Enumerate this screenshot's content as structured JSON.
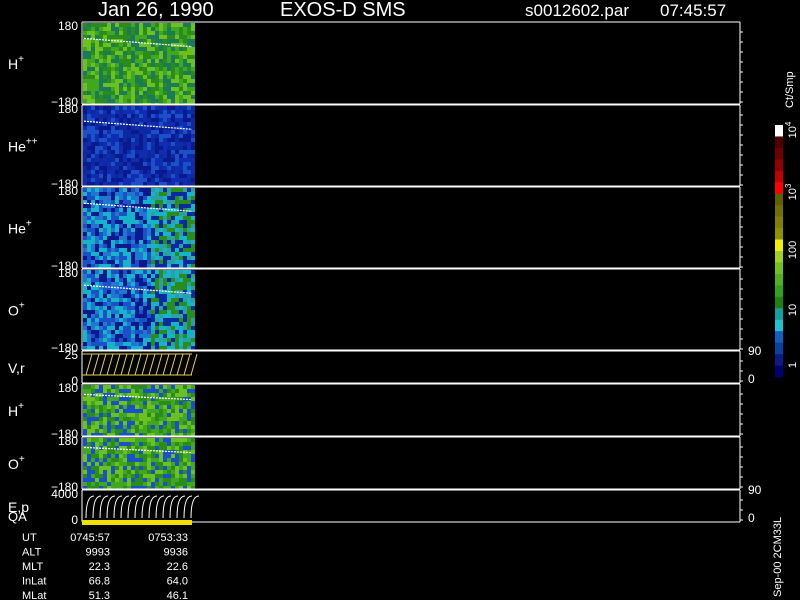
{
  "header": {
    "date": "Jan 26, 1990",
    "instrument": "EXOS-D SMS",
    "file": "s0012602.par",
    "time": "07:45:57"
  },
  "panels": [
    {
      "label": "H",
      "sup": "+",
      "top": "180",
      "bottom": "−180"
    },
    {
      "label": "He",
      "sup": "++",
      "top": "180",
      "bottom": "−180"
    },
    {
      "label": "He",
      "sup": "+",
      "top": "180",
      "bottom": "−180"
    },
    {
      "label": "O",
      "sup": "+",
      "top": "180",
      "bottom": "−180"
    },
    {
      "label": "V,r",
      "sup": "",
      "top": "25",
      "bottom": "0",
      "right_top": "90",
      "right_bottom": "0"
    },
    {
      "label": "H",
      "sup": "+",
      "top": "180",
      "bottom": "−180"
    },
    {
      "label": "O",
      "sup": "+",
      "top": "180",
      "bottom": "−180"
    },
    {
      "label": "E,p",
      "sup": "",
      "top": "4000",
      "bottom": "0",
      "right_top": "90",
      "right_bottom": "0"
    }
  ],
  "qa_label": "QA",
  "colorbar": {
    "unit": "Ct/Smp",
    "labels": [
      {
        "base": "1",
        "exp": ""
      },
      {
        "base": "10",
        "exp": ""
      },
      {
        "base": "100",
        "exp": ""
      },
      {
        "base": "10",
        "exp": "3"
      },
      {
        "base": "10",
        "exp": "4"
      }
    ]
  },
  "footer": {
    "rows": [
      [
        "UT",
        "0745:57",
        "0753:33"
      ],
      [
        "ALT",
        "9993",
        "9936"
      ],
      [
        "MLT",
        "22.3",
        "22.6"
      ],
      [
        "InLat",
        "66.8",
        "64.0"
      ],
      [
        "MLat",
        "51.3",
        "46.1"
      ]
    ]
  },
  "side_note": "Sep-00 2CM33L"
}
